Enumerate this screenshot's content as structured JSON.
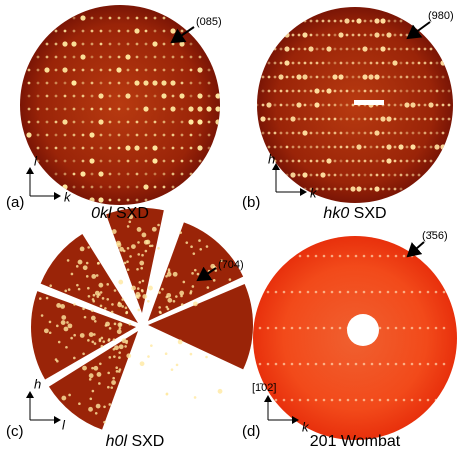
{
  "panels": [
    {
      "label": "(a)",
      "caption_hkl": "0kl",
      "caption_source": "SXD",
      "annotation": "(085)",
      "axis_vertical": "l",
      "axis_horizontal": "k"
    },
    {
      "label": "(b)",
      "caption_hkl": "hk0",
      "caption_source": "SXD",
      "annotation": "(980)",
      "axis_vertical": "h",
      "axis_horizontal": "k"
    },
    {
      "label": "(c)",
      "caption_hkl": "h0l",
      "caption_source": "SXD",
      "annotation": "(704)",
      "axis_vertical": "h",
      "axis_horizontal": "l"
    },
    {
      "label": "(d)",
      "caption_source": "201 Wombat",
      "annotation": "(3̄56)",
      "axis_vertical": "[1̄02]",
      "axis_horizontal": "k"
    }
  ]
}
